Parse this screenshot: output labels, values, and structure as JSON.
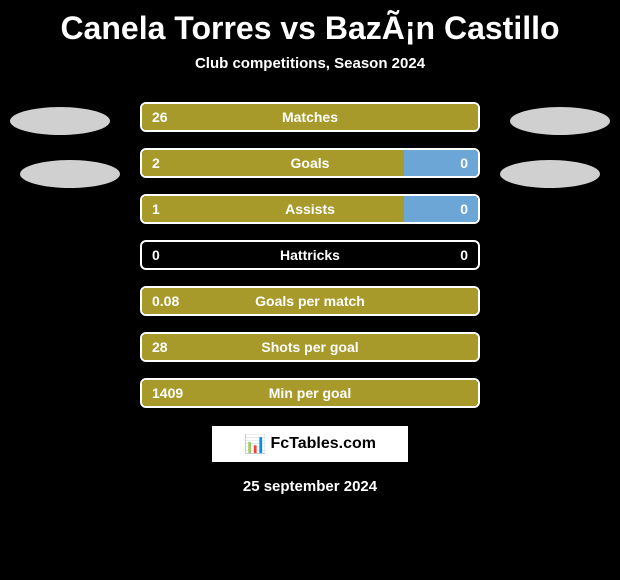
{
  "title": "Canela Torres vs BazÃ¡n Castillo",
  "subtitle": "Club competitions, Season 2024",
  "date": "25 september 2024",
  "footer_text": "FcTables.com",
  "colors": {
    "left_bar": "#a89a2a",
    "right_bar": "#6ba6d6",
    "background": "#000000",
    "border": "#ffffff",
    "text": "#ffffff",
    "badge": "#d0d0d0"
  },
  "stats": [
    {
      "label": "Matches",
      "left_value": "26",
      "right_value": "",
      "left_pct": 100,
      "right_pct": 0
    },
    {
      "label": "Goals",
      "left_value": "2",
      "right_value": "0",
      "left_pct": 78,
      "right_pct": 22
    },
    {
      "label": "Assists",
      "left_value": "1",
      "right_value": "0",
      "left_pct": 78,
      "right_pct": 22
    },
    {
      "label": "Hattricks",
      "left_value": "0",
      "right_value": "0",
      "left_pct": 0,
      "right_pct": 0
    },
    {
      "label": "Goals per match",
      "left_value": "0.08",
      "right_value": "",
      "left_pct": 100,
      "right_pct": 0
    },
    {
      "label": "Shots per goal",
      "left_value": "28",
      "right_value": "",
      "left_pct": 100,
      "right_pct": 0
    },
    {
      "label": "Min per goal",
      "left_value": "1409",
      "right_value": "",
      "left_pct": 100,
      "right_pct": 0
    }
  ]
}
